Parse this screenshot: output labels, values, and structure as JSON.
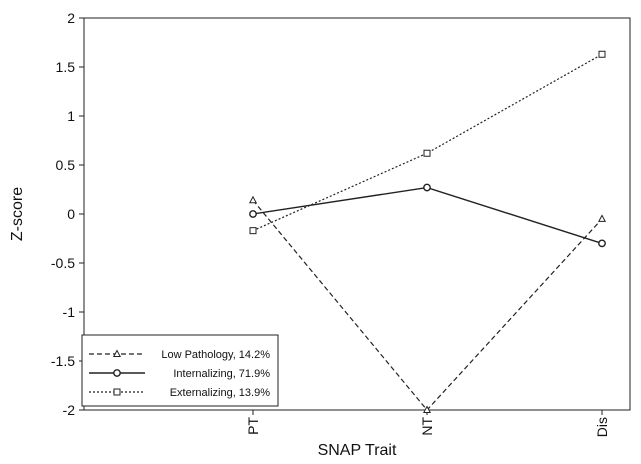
{
  "chart_data": {
    "type": "line",
    "xlabel": "SNAP Trait",
    "ylabel": "Z-score",
    "categories": [
      "PT",
      "NT",
      "Dis"
    ],
    "ylim": [
      -2,
      2
    ],
    "yticks": [
      "2",
      "1.5",
      "1",
      "0.5",
      "0",
      "-0.5",
      "-1",
      "-1.5",
      "-2"
    ],
    "grid": false,
    "legend_position": "bottom-left",
    "series": [
      {
        "name": "Low Pathology, 14.2%",
        "values": [
          0.14,
          -2.0,
          -0.05
        ],
        "dash": "dashed",
        "marker": "triangle",
        "color": "#222222"
      },
      {
        "name": "Internalizing, 71.9%",
        "values": [
          0.0,
          0.27,
          -0.3
        ],
        "dash": "solid",
        "marker": "circle",
        "color": "#222222"
      },
      {
        "name": "Externalizing, 13.9%",
        "values": [
          -0.17,
          0.62,
          1.63
        ],
        "dash": "dotted",
        "marker": "square",
        "color": "#222222"
      }
    ]
  }
}
